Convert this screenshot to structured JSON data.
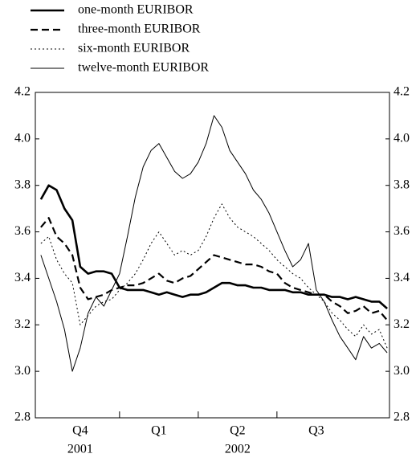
{
  "chart_data": {
    "type": "line",
    "x": [
      0,
      0.1,
      0.2,
      0.3,
      0.4,
      0.5,
      0.6,
      0.7,
      0.8,
      0.9,
      1.0,
      1.1,
      1.2,
      1.3,
      1.4,
      1.5,
      1.6,
      1.7,
      1.8,
      1.9,
      2.0,
      2.1,
      2.2,
      2.3,
      2.4,
      2.5,
      2.6,
      2.7,
      2.8,
      2.9,
      3.0,
      3.1,
      3.2,
      3.3,
      3.4,
      3.5,
      3.6,
      3.7,
      3.8,
      3.9,
      4.0,
      4.1,
      4.2,
      4.3,
      4.4
    ],
    "xlim": [
      -0.07,
      4.43
    ],
    "xticks": [
      1,
      2,
      3
    ],
    "quarter_labels": [
      {
        "value": 0.5,
        "label": "Q4"
      },
      {
        "value": 1.5,
        "label": "Q1"
      },
      {
        "value": 2.5,
        "label": "Q2"
      },
      {
        "value": 3.5,
        "label": "Q3"
      }
    ],
    "year_labels": [
      {
        "value": 0.5,
        "label": "2001"
      },
      {
        "value": 2.5,
        "label": "2002"
      }
    ],
    "ylim": [
      2.8,
      4.2
    ],
    "yticks": [
      2.8,
      {
        "value": 3.0,
        "label": "3.0"
      },
      3.2,
      3.4,
      3.6,
      3.8,
      {
        "value": 4.0,
        "label": "4.0"
      },
      4.2
    ],
    "y2lim": [
      2.8,
      4.2
    ],
    "y2ticks": [
      2.8,
      {
        "value": 3.0,
        "label": "3.0"
      },
      3.2,
      3.4,
      3.6,
      3.8,
      {
        "value": 4.0,
        "label": "4.0"
      },
      4.2
    ],
    "series": [
      {
        "name": "one-month EURIBOR",
        "color": "#000000",
        "line_style": "bold",
        "values": [
          3.74,
          3.8,
          3.78,
          3.7,
          3.65,
          3.45,
          3.42,
          3.43,
          3.43,
          3.42,
          3.36,
          3.35,
          3.35,
          3.35,
          3.34,
          3.33,
          3.34,
          3.33,
          3.32,
          3.33,
          3.33,
          3.34,
          3.36,
          3.38,
          3.38,
          3.37,
          3.37,
          3.36,
          3.36,
          3.35,
          3.35,
          3.35,
          3.34,
          3.34,
          3.33,
          3.33,
          3.33,
          3.32,
          3.32,
          3.31,
          3.32,
          3.31,
          3.3,
          3.3,
          3.27
        ]
      },
      {
        "name": "three-month EURIBOR",
        "color": "#000000",
        "line_style": "dashed",
        "values": [
          3.62,
          3.66,
          3.58,
          3.55,
          3.5,
          3.36,
          3.31,
          3.32,
          3.33,
          3.35,
          3.36,
          3.37,
          3.37,
          3.38,
          3.4,
          3.42,
          3.39,
          3.38,
          3.4,
          3.41,
          3.44,
          3.47,
          3.5,
          3.49,
          3.48,
          3.47,
          3.46,
          3.46,
          3.45,
          3.43,
          3.42,
          3.38,
          3.36,
          3.35,
          3.34,
          3.33,
          3.33,
          3.3,
          3.28,
          3.25,
          3.26,
          3.28,
          3.25,
          3.26,
          3.22
        ]
      },
      {
        "name": "six-month EURIBOR",
        "color": "#000000",
        "line_style": "dotted",
        "values": [
          3.55,
          3.58,
          3.48,
          3.42,
          3.38,
          3.2,
          3.24,
          3.28,
          3.3,
          3.31,
          3.35,
          3.38,
          3.42,
          3.48,
          3.55,
          3.6,
          3.55,
          3.5,
          3.52,
          3.5,
          3.52,
          3.58,
          3.66,
          3.72,
          3.66,
          3.62,
          3.6,
          3.58,
          3.55,
          3.52,
          3.48,
          3.45,
          3.42,
          3.4,
          3.36,
          3.33,
          3.3,
          3.25,
          3.22,
          3.18,
          3.15,
          3.2,
          3.16,
          3.18,
          3.1
        ]
      },
      {
        "name": "twelve-month EURIBOR",
        "color": "#000000",
        "line_style": "thin",
        "values": [
          3.5,
          3.4,
          3.3,
          3.18,
          3.0,
          3.1,
          3.25,
          3.32,
          3.28,
          3.35,
          3.42,
          3.58,
          3.75,
          3.88,
          3.95,
          3.98,
          3.92,
          3.86,
          3.83,
          3.85,
          3.9,
          3.98,
          4.1,
          4.05,
          3.95,
          3.9,
          3.85,
          3.78,
          3.74,
          3.68,
          3.6,
          3.52,
          3.45,
          3.48,
          3.55,
          3.35,
          3.3,
          3.22,
          3.15,
          3.1,
          3.05,
          3.15,
          3.1,
          3.12,
          3.08
        ]
      }
    ],
    "legend": "top-left"
  }
}
